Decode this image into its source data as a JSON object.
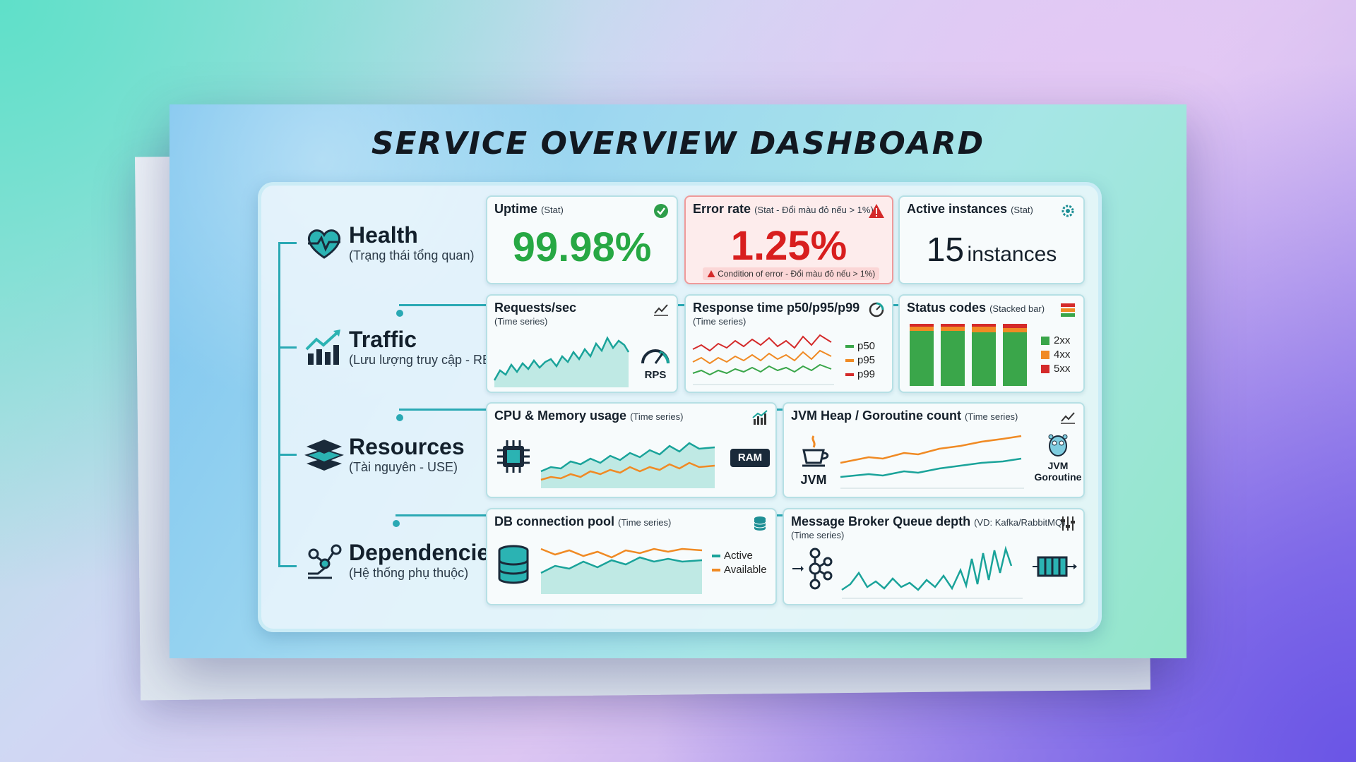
{
  "title": "SERVICE OVERVIEW DASHBOARD",
  "categories": [
    {
      "name": "Health",
      "sub": "(Trạng thái tổng quan)",
      "icon": "heart-pulse-icon"
    },
    {
      "name": "Traffic",
      "sub": "(Lưu lượng truy cập - RED)",
      "icon": "trending-bars-icon"
    },
    {
      "name": "Resources",
      "sub": "(Tài nguyên - USE)",
      "icon": "layers-icon"
    },
    {
      "name": "Dependencies",
      "sub": "(Hệ thống phụ thuộc)",
      "icon": "network-nodes-icon"
    }
  ],
  "health": {
    "uptime": {
      "title": "Uptime",
      "tag": "(Stat)",
      "value": "99.98%",
      "icon": "check-circle-icon",
      "color": "#27a844"
    },
    "error_rate": {
      "title": "Error rate",
      "tag": "(Stat - Đổi màu đỏ nếu > 1%)",
      "value": "1.25%",
      "note": "Condition of error - Đổi màu đỏ nếu > 1%)",
      "icon": "warning-icon",
      "color": "#d81e1e"
    },
    "instances": {
      "title": "Active instances",
      "tag": "(Stat)",
      "value": "15",
      "unit": "instances",
      "icon": "gear-icon"
    }
  },
  "traffic": {
    "requests": {
      "title": "Requests/sec",
      "sub": "(Time series)",
      "badge": "RPS",
      "icon": "line-chart-icon"
    },
    "response": {
      "title": "Response time p50/p95/p99",
      "sub": "(Time series)",
      "legend": [
        "p50",
        "p95",
        "p99"
      ],
      "icon": "gauge-icon"
    },
    "status": {
      "title": "Status codes",
      "tag": "(Stacked bar)",
      "legend": [
        "2xx",
        "4xx",
        "5xx"
      ],
      "icon": "stacked-bars-icon"
    }
  },
  "resources": {
    "cpu": {
      "title": "CPU & Memory usage",
      "tag": "(Time series)",
      "badge": "RAM",
      "icon": "bar-chart-icon"
    },
    "jvm": {
      "title": "JVM Heap / Goroutine count",
      "tag": "(Time series)",
      "left_label": "JVM",
      "right_label_1": "JVM",
      "right_label_2": "Goroutine",
      "icon": "line-chart-icon"
    }
  },
  "dependencies": {
    "db": {
      "title": "DB connection pool",
      "tag": "(Time series)",
      "legend": [
        "Active",
        "Available"
      ],
      "icon": "database-icon"
    },
    "mq": {
      "title": "Message Broker Queue depth",
      "tag": "(VD: Kafka/RabbitMQ)",
      "sub": "(Time series)",
      "icon": "sliders-icon"
    }
  },
  "colors": {
    "green": "#3aa64a",
    "orange": "#f08a24",
    "red": "#d42a2a",
    "teal": "#20a5a8"
  }
}
